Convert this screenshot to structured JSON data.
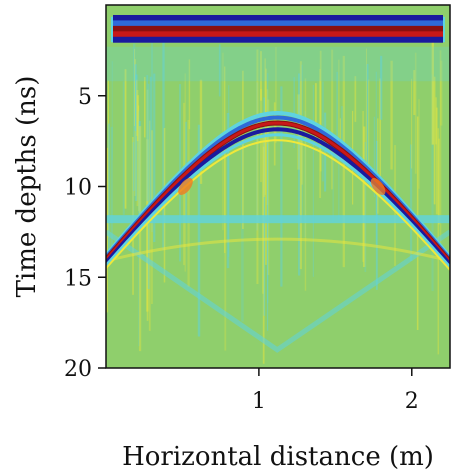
{
  "chart_data": {
    "type": "heatmap",
    "title": "",
    "xlabel": "Horizontal distance (m)",
    "ylabel": "Time depths (ns)",
    "xlim": [
      0,
      2.25
    ],
    "ylim": [
      20,
      0
    ],
    "x_ticks": [
      1,
      2
    ],
    "y_ticks": [
      5,
      10,
      15,
      20
    ],
    "x_tick_labels": [
      "1",
      "2"
    ],
    "y_tick_labels": [
      "5",
      "10",
      "15",
      "20"
    ],
    "grid": false,
    "colormap": "jet",
    "background_color": "#8fcf6c",
    "features": {
      "direct_wave_bands_ns": [
        0.7,
        1.0,
        1.3,
        1.6,
        1.9
      ],
      "hyperbola_apex": {
        "x": 1.12,
        "t": 6.5
      },
      "hyperbola_limbs_end": {
        "x_left": 0.0,
        "x_right": 2.25,
        "t": 14.5
      },
      "horizontal_reflector_t": 11.8,
      "inverted_v_apex": {
        "x": 1.12,
        "t": 19.0
      }
    },
    "colors": {
      "dark_blue": "#1a1a9e",
      "blue": "#2f6ad8",
      "cyan": "#5fd3e0",
      "green": "#8fcf6c",
      "yellow": "#f0e83a",
      "orange": "#f07a20",
      "red": "#c81818",
      "dark_red": "#8a1010"
    }
  }
}
